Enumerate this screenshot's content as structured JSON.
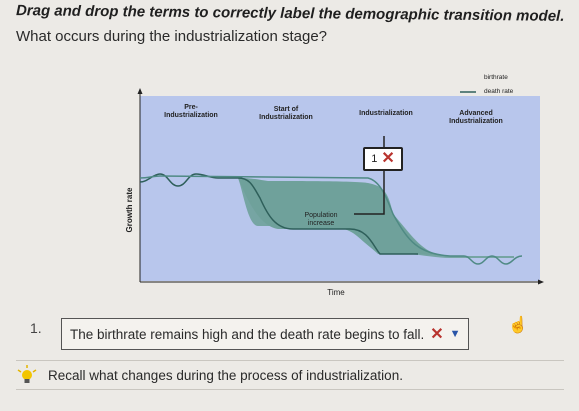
{
  "instruction": "Drag and drop the terms to correctly label the demographic transition model.",
  "question": "What occurs during the industrialization stage?",
  "figure": {
    "stages": [
      "Pre-\nIndustrialization",
      "Start of\nIndustrialization",
      "Industrialization",
      "Advanced\nIndustrialization"
    ],
    "legend": [
      "birthrate",
      "death rate"
    ],
    "y_label": "Growth rate",
    "x_label": "Time",
    "area_label": "Population\nincrease",
    "drop_number": "1",
    "colors": {
      "plot_bg": "#b8c6ec",
      "area_fill": "#6fa19b",
      "birth_line": "#4f8a84",
      "death_line": "#2e5f5a"
    }
  },
  "question_number": "1.",
  "answer": {
    "text": "The birthrate remains high and the death rate begins to fall.",
    "status_icon": "x-icon",
    "dropdown_icon": "chevron-down-icon"
  },
  "hint": {
    "icon": "lightbulb-icon",
    "text": "Recall what changes during the process of industrialization."
  }
}
